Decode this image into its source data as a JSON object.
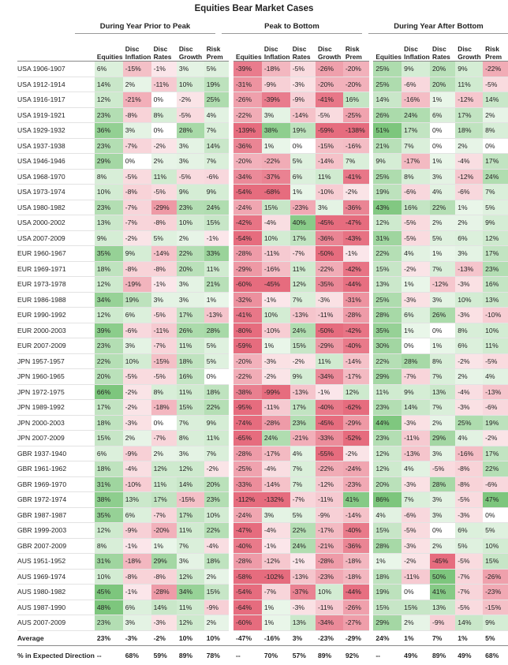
{
  "title": "Equities Bear Market Cases",
  "group_titles": [
    "During Year Prior to Peak",
    "Peak to Bottom",
    "During Year After Bottom"
  ],
  "column_headers": [
    "Equities",
    "Disc Inflation",
    "Disc Rates",
    "Disc Growth",
    "Risk Prem"
  ],
  "colors": {
    "green": "#5cb85c",
    "red": "#e0475e"
  },
  "rows": [
    {
      "label": "USA 1906-1907",
      "v": [
        "6%",
        "-15%",
        "-1%",
        "3%",
        "5%",
        "-39%",
        "-18%",
        "-5%",
        "-26%",
        "-20%",
        "25%",
        "9%",
        "20%",
        "9%",
        "-22%"
      ]
    },
    {
      "label": "USA 1912-1914",
      "v": [
        "14%",
        "2%",
        "-11%",
        "10%",
        "19%",
        "-31%",
        "-9%",
        "-3%",
        "-20%",
        "-20%",
        "25%",
        "-6%",
        "20%",
        "11%",
        "-5%"
      ]
    },
    {
      "label": "USA 1916-1917",
      "v": [
        "12%",
        "-21%",
        "0%",
        "-2%",
        "25%",
        "-26%",
        "-39%",
        "-9%",
        "-41%",
        "16%",
        "14%",
        "-16%",
        "1%",
        "-12%",
        "14%"
      ]
    },
    {
      "label": "USA 1919-1921",
      "v": [
        "23%",
        "-8%",
        "8%",
        "-5%",
        "4%",
        "-22%",
        "3%",
        "-14%",
        "-5%",
        "-25%",
        "26%",
        "24%",
        "6%",
        "17%",
        "2%"
      ]
    },
    {
      "label": "USA 1929-1932",
      "v": [
        "36%",
        "3%",
        "0%",
        "28%",
        "7%",
        "-139%",
        "38%",
        "19%",
        "-59%",
        "-138%",
        "51%",
        "17%",
        "0%",
        "18%",
        "8%"
      ]
    },
    {
      "label": "USA 1937-1938",
      "v": [
        "23%",
        "-7%",
        "-2%",
        "3%",
        "14%",
        "-36%",
        "1%",
        "0%",
        "-15%",
        "-16%",
        "21%",
        "7%",
        "0%",
        "2%",
        "0%"
      ]
    },
    {
      "label": "USA 1946-1946",
      "v": [
        "29%",
        "0%",
        "2%",
        "3%",
        "7%",
        "-20%",
        "-22%",
        "5%",
        "-14%",
        "7%",
        "9%",
        "-17%",
        "1%",
        "-4%",
        "17%"
      ]
    },
    {
      "label": "USA 1968-1970",
      "v": [
        "8%",
        "-5%",
        "11%",
        "-5%",
        "-6%",
        "-34%",
        "-37%",
        "6%",
        "11%",
        "-41%",
        "25%",
        "8%",
        "3%",
        "-12%",
        "24%"
      ]
    },
    {
      "label": "USA 1973-1974",
      "v": [
        "10%",
        "-8%",
        "-5%",
        "9%",
        "9%",
        "-54%",
        "-68%",
        "1%",
        "-10%",
        "-2%",
        "19%",
        "-6%",
        "4%",
        "-6%",
        "7%"
      ]
    },
    {
      "label": "USA 1980-1982",
      "v": [
        "23%",
        "-7%",
        "-29%",
        "23%",
        "24%",
        "-24%",
        "15%",
        "-23%",
        "3%",
        "-36%",
        "43%",
        "16%",
        "22%",
        "1%",
        "5%"
      ]
    },
    {
      "label": "USA 2000-2002",
      "v": [
        "13%",
        "-7%",
        "-8%",
        "10%",
        "15%",
        "-42%",
        "-4%",
        "40%",
        "-45%",
        "-47%",
        "12%",
        "-5%",
        "2%",
        "2%",
        "9%"
      ]
    },
    {
      "label": "USA 2007-2009",
      "v": [
        "9%",
        "-2%",
        "5%",
        "2%",
        "-1%",
        "-54%",
        "10%",
        "17%",
        "-36%",
        "-43%",
        "31%",
        "-5%",
        "5%",
        "6%",
        "12%"
      ]
    },
    {
      "label": "EUR 1960-1967",
      "v": [
        "35%",
        "9%",
        "-14%",
        "22%",
        "33%",
        "-28%",
        "-11%",
        "-7%",
        "-50%",
        "-1%",
        "22%",
        "4%",
        "1%",
        "3%",
        "17%"
      ]
    },
    {
      "label": "EUR 1969-1971",
      "v": [
        "18%",
        "-8%",
        "-8%",
        "20%",
        "11%",
        "-29%",
        "-16%",
        "11%",
        "-22%",
        "-42%",
        "15%",
        "-2%",
        "7%",
        "-13%",
        "23%"
      ]
    },
    {
      "label": "EUR 1973-1978",
      "v": [
        "12%",
        "-19%",
        "-1%",
        "3%",
        "21%",
        "-60%",
        "-45%",
        "12%",
        "-35%",
        "-44%",
        "13%",
        "1%",
        "-12%",
        "-3%",
        "16%"
      ]
    },
    {
      "label": "EUR 1986-1988",
      "v": [
        "34%",
        "19%",
        "3%",
        "3%",
        "1%",
        "-32%",
        "-1%",
        "7%",
        "-3%",
        "-31%",
        "25%",
        "-3%",
        "3%",
        "10%",
        "13%"
      ]
    },
    {
      "label": "EUR 1990-1992",
      "v": [
        "12%",
        "6%",
        "-5%",
        "17%",
        "-13%",
        "-41%",
        "10%",
        "-13%",
        "-11%",
        "-28%",
        "28%",
        "6%",
        "26%",
        "-3%",
        "-10%"
      ]
    },
    {
      "label": "EUR 2000-2003",
      "v": [
        "39%",
        "-6%",
        "-11%",
        "26%",
        "28%",
        "-80%",
        "-10%",
        "24%",
        "-50%",
        "-42%",
        "35%",
        "1%",
        "0%",
        "8%",
        "10%"
      ]
    },
    {
      "label": "EUR 2007-2009",
      "v": [
        "23%",
        "3%",
        "-7%",
        "11%",
        "5%",
        "-59%",
        "1%",
        "15%",
        "-29%",
        "-40%",
        "30%",
        "0%",
        "1%",
        "6%",
        "11%"
      ]
    },
    {
      "label": "JPN 1957-1957",
      "v": [
        "22%",
        "10%",
        "-15%",
        "18%",
        "5%",
        "-20%",
        "-3%",
        "-2%",
        "11%",
        "-14%",
        "22%",
        "28%",
        "8%",
        "-2%",
        "-5%"
      ]
    },
    {
      "label": "JPN 1960-1965",
      "v": [
        "20%",
        "-5%",
        "-5%",
        "16%",
        "0%",
        "-22%",
        "-2%",
        "9%",
        "-34%",
        "-17%",
        "29%",
        "-7%",
        "7%",
        "2%",
        "4%"
      ]
    },
    {
      "label": "JPN 1972-1975",
      "v": [
        "66%",
        "-2%",
        "8%",
        "11%",
        "18%",
        "-38%",
        "-99%",
        "-13%",
        "-1%",
        "12%",
        "11%",
        "9%",
        "13%",
        "-4%",
        "-13%"
      ]
    },
    {
      "label": "JPN 1989-1992",
      "v": [
        "17%",
        "-2%",
        "-18%",
        "15%",
        "22%",
        "-95%",
        "-11%",
        "17%",
        "-40%",
        "-62%",
        "23%",
        "14%",
        "7%",
        "-3%",
        "-6%"
      ]
    },
    {
      "label": "JPN 2000-2003",
      "v": [
        "18%",
        "-3%",
        "0%",
        "7%",
        "9%",
        "-74%",
        "-28%",
        "23%",
        "-45%",
        "-29%",
        "44%",
        "-3%",
        "2%",
        "25%",
        "19%"
      ]
    },
    {
      "label": "JPN 2007-2009",
      "v": [
        "15%",
        "2%",
        "-7%",
        "8%",
        "11%",
        "-65%",
        "24%",
        "-21%",
        "-33%",
        "-52%",
        "23%",
        "-11%",
        "29%",
        "4%",
        "-2%"
      ]
    },
    {
      "label": "GBR 1937-1940",
      "v": [
        "6%",
        "-9%",
        "2%",
        "3%",
        "7%",
        "-28%",
        "-17%",
        "4%",
        "-55%",
        "-2%",
        "12%",
        "-13%",
        "3%",
        "-16%",
        "17%"
      ]
    },
    {
      "label": "GBR 1961-1962",
      "v": [
        "18%",
        "-4%",
        "12%",
        "12%",
        "-2%",
        "-25%",
        "-4%",
        "7%",
        "-22%",
        "-24%",
        "12%",
        "4%",
        "-5%",
        "-8%",
        "22%"
      ]
    },
    {
      "label": "GBR 1969-1970",
      "v": [
        "31%",
        "-10%",
        "11%",
        "14%",
        "20%",
        "-33%",
        "-14%",
        "7%",
        "-12%",
        "-23%",
        "20%",
        "-3%",
        "28%",
        "-8%",
        "-6%"
      ]
    },
    {
      "label": "GBR 1972-1974",
      "v": [
        "38%",
        "13%",
        "17%",
        "-15%",
        "23%",
        "-112%",
        "-132%",
        "-7%",
        "-11%",
        "41%",
        "86%",
        "7%",
        "3%",
        "-5%",
        "47%"
      ]
    },
    {
      "label": "GBR 1987-1987",
      "v": [
        "35%",
        "6%",
        "-7%",
        "17%",
        "10%",
        "-24%",
        "3%",
        "5%",
        "-9%",
        "-14%",
        "4%",
        "-6%",
        "3%",
        "-3%",
        "0%"
      ]
    },
    {
      "label": "GBR 1999-2003",
      "v": [
        "12%",
        "-9%",
        "-20%",
        "11%",
        "22%",
        "-47%",
        "-4%",
        "22%",
        "-17%",
        "-40%",
        "15%",
        "-5%",
        "0%",
        "6%",
        "5%"
      ]
    },
    {
      "label": "GBR 2007-2009",
      "v": [
        "8%",
        "-1%",
        "1%",
        "7%",
        "-4%",
        "-40%",
        "-1%",
        "24%",
        "-21%",
        "-36%",
        "28%",
        "-3%",
        "2%",
        "5%",
        "10%"
      ]
    },
    {
      "label": "AUS 1951-1952",
      "v": [
        "31%",
        "-18%",
        "29%",
        "3%",
        "18%",
        "-28%",
        "-12%",
        "-1%",
        "-28%",
        "-18%",
        "1%",
        "-2%",
        "-45%",
        "-5%",
        "15%"
      ]
    },
    {
      "label": "AUS 1969-1974",
      "v": [
        "10%",
        "-8%",
        "-8%",
        "12%",
        "2%",
        "-58%",
        "-102%",
        "-13%",
        "-23%",
        "-18%",
        "18%",
        "-11%",
        "50%",
        "-7%",
        "-26%"
      ]
    },
    {
      "label": "AUS 1980-1982",
      "v": [
        "45%",
        "-1%",
        "-28%",
        "34%",
        "15%",
        "-54%",
        "-7%",
        "-37%",
        "10%",
        "-44%",
        "19%",
        "0%",
        "41%",
        "-7%",
        "-23%"
      ]
    },
    {
      "label": "AUS 1987-1990",
      "v": [
        "48%",
        "6%",
        "14%",
        "11%",
        "-9%",
        "-64%",
        "1%",
        "-3%",
        "-11%",
        "-26%",
        "15%",
        "15%",
        "13%",
        "-5%",
        "-15%"
      ]
    },
    {
      "label": "AUS 2007-2009",
      "v": [
        "23%",
        "3%",
        "-3%",
        "12%",
        "2%",
        "-60%",
        "1%",
        "13%",
        "-34%",
        "-27%",
        "29%",
        "2%",
        "-9%",
        "14%",
        "9%"
      ]
    }
  ],
  "average": {
    "label": "Average",
    "v": [
      "23%",
      "-3%",
      "-2%",
      "10%",
      "10%",
      "-47%",
      "-16%",
      "3%",
      "-23%",
      "-29%",
      "24%",
      "1%",
      "7%",
      "1%",
      "5%"
    ]
  },
  "expected": {
    "label": "% in Expected Direction",
    "v": [
      "--",
      "68%",
      "59%",
      "89%",
      "78%",
      "--",
      "70%",
      "57%",
      "89%",
      "92%",
      "--",
      "49%",
      "89%",
      "49%",
      "68%"
    ]
  }
}
